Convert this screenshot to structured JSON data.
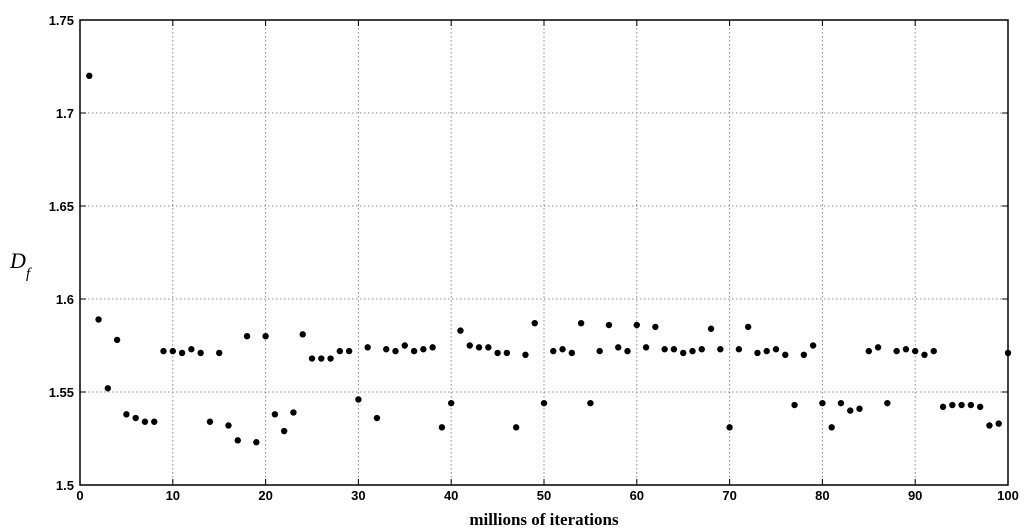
{
  "chart_data": {
    "type": "scatter",
    "title": "",
    "xlabel": "millions of iterations",
    "ylabel": {
      "main": "D",
      "subscript": "f"
    },
    "xlim": [
      0,
      100
    ],
    "ylim": [
      1.5,
      1.75
    ],
    "xticks": [
      0,
      10,
      20,
      30,
      40,
      50,
      60,
      70,
      80,
      90,
      100
    ],
    "xtick_labels": [
      "0",
      "10",
      "20",
      "30",
      "40",
      "50",
      "60",
      "70",
      "80",
      "90",
      "100"
    ],
    "yticks": [
      1.5,
      1.55,
      1.6,
      1.65,
      1.7,
      1.75
    ],
    "ytick_labels": [
      "1.5",
      "1.55",
      "1.6",
      "1.65",
      "1.7",
      "1.75"
    ],
    "grid": true,
    "marker_color": "#000000",
    "x": [
      1,
      2,
      3,
      4,
      5,
      6,
      7,
      8,
      9,
      10,
      11,
      12,
      13,
      14,
      15,
      16,
      17,
      18,
      19,
      20,
      21,
      22,
      23,
      24,
      25,
      26,
      27,
      28,
      29,
      30,
      31,
      32,
      33,
      34,
      35,
      36,
      37,
      38,
      39,
      40,
      41,
      42,
      43,
      44,
      45,
      46,
      47,
      48,
      49,
      50,
      51,
      52,
      53,
      54,
      55,
      56,
      57,
      58,
      59,
      60,
      61,
      62,
      63,
      64,
      65,
      66,
      67,
      68,
      69,
      70,
      71,
      72,
      73,
      74,
      75,
      76,
      77,
      78,
      79,
      80,
      81,
      82,
      83,
      84,
      85,
      86,
      87,
      88,
      89,
      90,
      91,
      92,
      93,
      94,
      95,
      96,
      97,
      98,
      99,
      100
    ],
    "y": [
      1.72,
      1.589,
      1.552,
      1.578,
      1.538,
      1.536,
      1.534,
      1.534,
      1.572,
      1.572,
      1.571,
      1.573,
      1.571,
      1.534,
      1.571,
      1.532,
      1.524,
      1.58,
      1.523,
      1.58,
      1.538,
      1.529,
      1.539,
      1.581,
      1.568,
      1.568,
      1.568,
      1.572,
      1.572,
      1.546,
      1.574,
      1.536,
      1.573,
      1.572,
      1.575,
      1.572,
      1.573,
      1.574,
      1.531,
      1.544,
      1.583,
      1.575,
      1.574,
      1.574,
      1.571,
      1.571,
      1.531,
      1.57,
      1.587,
      1.544,
      1.572,
      1.573,
      1.571,
      1.587,
      1.544,
      1.572,
      1.586,
      1.574,
      1.572,
      1.586,
      1.574,
      1.585,
      1.573,
      1.573,
      1.571,
      1.572,
      1.573,
      1.584,
      1.573,
      1.531,
      1.573,
      1.585,
      1.571,
      1.572,
      1.573,
      1.57,
      1.543,
      1.57,
      1.575,
      1.544,
      1.531,
      1.544,
      1.54,
      1.541,
      1.572,
      1.574,
      1.544,
      1.572,
      1.573,
      1.572,
      1.57,
      1.572,
      1.542,
      1.543,
      1.543,
      1.543,
      1.542,
      1.532,
      1.533,
      1.571
    ]
  }
}
